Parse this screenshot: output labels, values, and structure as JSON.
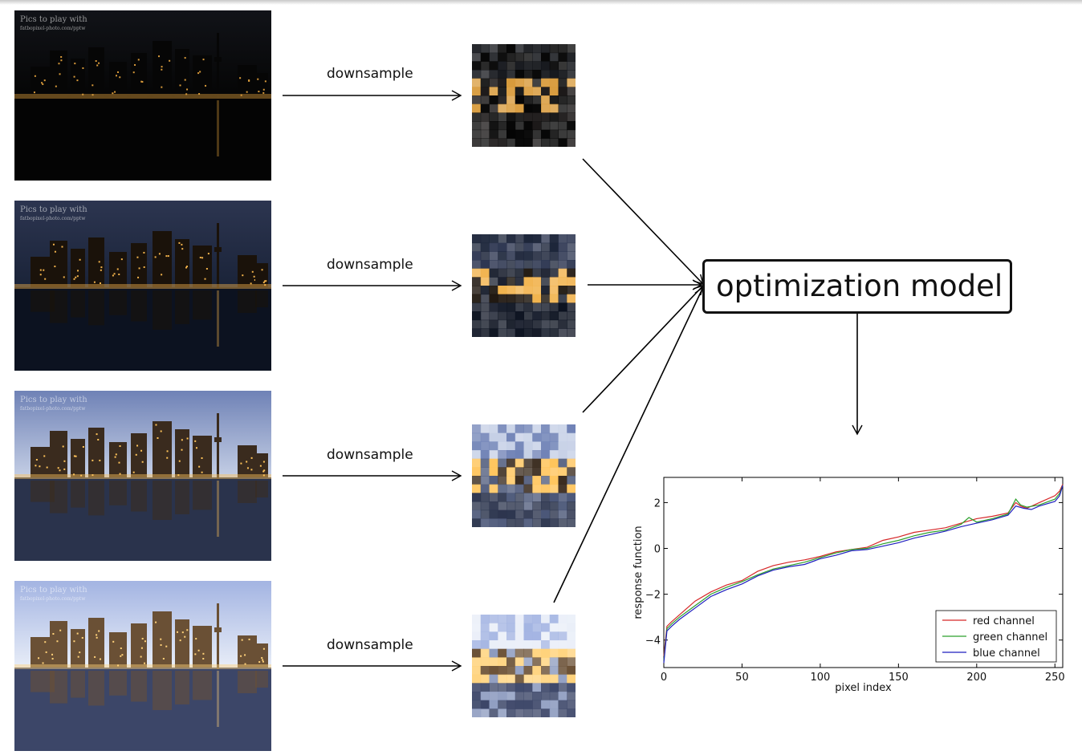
{
  "watermark": {
    "line1": "Pics to play with",
    "line2": "fatbopixel-photo.com/pptw"
  },
  "exposures": [
    {
      "label": "downsample",
      "sky_top": "#111318",
      "sky_bottom": "#050505",
      "water": "#040404",
      "building": "#060606",
      "light": "#d89a3a",
      "thumb_base": "#151212"
    },
    {
      "label": "downsample",
      "sky_top": "#2c3550",
      "sky_bottom": "#1a2338",
      "water": "#0c1220",
      "building": "#1a120a",
      "light": "#f1b24b",
      "thumb_base": "#171d2c"
    },
    {
      "label": "downsample",
      "sky_top": "#6f82b6",
      "sky_bottom": "#c6d0e6",
      "water": "#2a334c",
      "building": "#3a2b1e",
      "light": "#ffc45a",
      "thumb_base": "#4b5778"
    },
    {
      "label": "downsample",
      "sky_top": "#a3b4e2",
      "sky_bottom": "#e9eef8",
      "water": "#3c4668",
      "building": "#6a5035",
      "light": "#ffd27a",
      "thumb_base": "#8d9bbf"
    }
  ],
  "model": {
    "label": "optimization model"
  },
  "chart_data": {
    "type": "line",
    "xlabel": "pixel index",
    "ylabel": "response function",
    "xlim": [
      0,
      255
    ],
    "ylim": [
      -5.2,
      3.1
    ],
    "xticks": [
      0,
      50,
      100,
      150,
      200,
      250
    ],
    "yticks": [
      -4,
      -2,
      0,
      2
    ],
    "legend_position": "lower-right",
    "series": [
      {
        "name": "red channel",
        "color": "#d62728",
        "x": [
          0,
          2,
          5,
          10,
          20,
          30,
          40,
          50,
          60,
          70,
          80,
          90,
          100,
          110,
          120,
          130,
          140,
          150,
          160,
          170,
          180,
          190,
          200,
          210,
          220,
          225,
          228,
          232,
          240,
          250,
          253,
          255
        ],
        "y": [
          -4.7,
          -3.4,
          -3.2,
          -2.9,
          -2.3,
          -1.9,
          -1.6,
          -1.4,
          -1.0,
          -0.75,
          -0.6,
          -0.5,
          -0.35,
          -0.15,
          -0.05,
          0.05,
          0.35,
          0.5,
          0.7,
          0.8,
          0.9,
          1.1,
          1.3,
          1.4,
          1.55,
          2.0,
          1.85,
          1.75,
          2.0,
          2.3,
          2.5,
          2.8
        ]
      },
      {
        "name": "green channel",
        "color": "#2ca02c",
        "x": [
          0,
          2,
          5,
          10,
          20,
          30,
          40,
          50,
          60,
          70,
          80,
          90,
          100,
          110,
          120,
          130,
          140,
          150,
          160,
          170,
          180,
          190,
          195,
          200,
          210,
          220,
          225,
          228,
          232,
          240,
          250,
          253,
          255
        ],
        "y": [
          -4.9,
          -3.5,
          -3.3,
          -3.0,
          -2.5,
          -2.0,
          -1.7,
          -1.45,
          -1.15,
          -0.9,
          -0.75,
          -0.6,
          -0.4,
          -0.2,
          -0.05,
          0.0,
          0.2,
          0.35,
          0.55,
          0.7,
          0.8,
          1.05,
          1.35,
          1.15,
          1.3,
          1.5,
          2.15,
          1.9,
          1.8,
          1.9,
          2.15,
          2.4,
          2.75
        ]
      },
      {
        "name": "blue channel",
        "color": "#1f1fbf",
        "x": [
          0,
          2,
          5,
          10,
          20,
          30,
          40,
          50,
          60,
          70,
          80,
          90,
          100,
          110,
          120,
          130,
          140,
          150,
          160,
          170,
          180,
          190,
          200,
          210,
          220,
          225,
          230,
          235,
          240,
          250,
          253,
          255
        ],
        "y": [
          -5.0,
          -3.6,
          -3.4,
          -3.1,
          -2.6,
          -2.1,
          -1.8,
          -1.55,
          -1.2,
          -0.95,
          -0.8,
          -0.7,
          -0.45,
          -0.3,
          -0.1,
          -0.05,
          0.1,
          0.25,
          0.45,
          0.6,
          0.75,
          0.95,
          1.1,
          1.25,
          1.45,
          1.85,
          1.75,
          1.7,
          1.85,
          2.05,
          2.3,
          2.75
        ]
      }
    ]
  }
}
